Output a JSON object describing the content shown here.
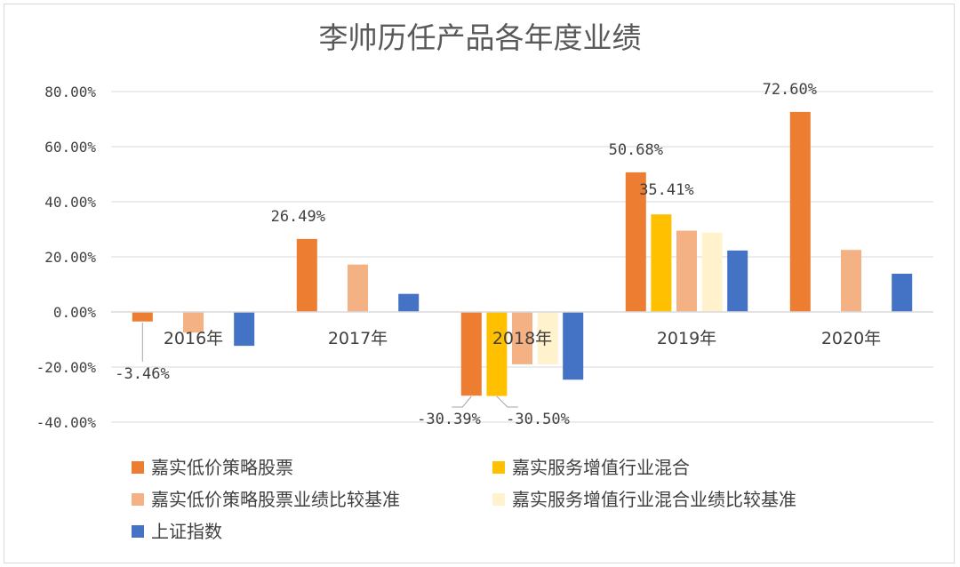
{
  "chart_data": {
    "type": "bar",
    "title": "李帅历任产品各年度业绩",
    "categories": [
      "2016年",
      "2017年",
      "2018年",
      "2019年",
      "2020年"
    ],
    "ylim": [
      -40,
      80
    ],
    "yticks": [
      "80.00%",
      "60.00%",
      "40.00%",
      "20.00%",
      "0.00%",
      "-20.00%",
      "-40.00%"
    ],
    "series": [
      {
        "name": "嘉实低价策略股票",
        "color": "#ED7D31",
        "values": [
          -3.46,
          26.49,
          -30.39,
          50.68,
          72.6
        ]
      },
      {
        "name": "嘉实服务增值行业混合",
        "color": "#FFC000",
        "values": [
          null,
          null,
          -30.5,
          35.41,
          null
        ]
      },
      {
        "name": "嘉实低价策略股票业绩比较基准",
        "color": "#F4B183",
        "values": [
          -7.5,
          17.2,
          -19.0,
          29.5,
          22.5
        ]
      },
      {
        "name": "嘉实服务增值行业混合业绩比较基准",
        "color": "#FFF2CC",
        "values": [
          null,
          null,
          -19.0,
          28.8,
          null
        ]
      },
      {
        "name": "上证指数",
        "color": "#4472C4",
        "values": [
          -12.3,
          6.56,
          -24.59,
          22.3,
          13.87
        ]
      }
    ],
    "data_labels": [
      {
        "series": 0,
        "category": 0,
        "text": "-3.46%"
      },
      {
        "series": 0,
        "category": 1,
        "text": "26.49%"
      },
      {
        "series": 0,
        "category": 2,
        "text": "-30.39%"
      },
      {
        "series": 1,
        "category": 2,
        "text": "-30.50%"
      },
      {
        "series": 0,
        "category": 3,
        "text": "50.68%"
      },
      {
        "series": 1,
        "category": 3,
        "text": "35.41%"
      },
      {
        "series": 0,
        "category": 4,
        "text": "72.60%"
      }
    ],
    "legend": [
      "嘉实低价策略股票",
      "嘉实服务增值行业混合",
      "嘉实低价策略股票业绩比较基准",
      "嘉实服务增值行业混合业绩比较基准",
      "上证指数"
    ],
    "legend_position": "bottom"
  }
}
